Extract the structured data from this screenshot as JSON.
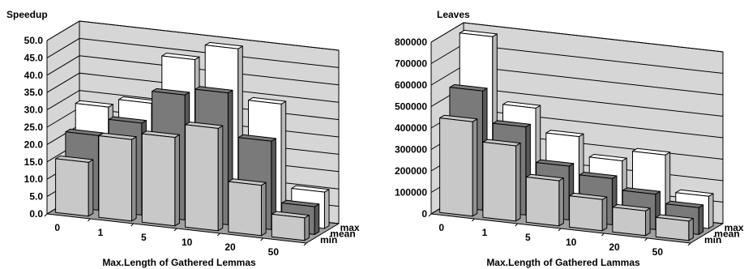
{
  "chart_data": [
    {
      "type": "bar",
      "subtype": "3d-grouped",
      "title": "Speedup",
      "xlabel": "Max.Length of Gathered Lemmas",
      "categories": [
        "0",
        "1",
        "5",
        "10",
        "20",
        "50"
      ],
      "depth_labels": [
        "max",
        "mean",
        "min"
      ],
      "ylim": [
        0,
        50
      ],
      "yticks": [
        "0.0",
        "5.0",
        "10.0",
        "15.0",
        "20.0",
        "25.0",
        "30.0",
        "35.0",
        "40.0",
        "45.0",
        "50.0"
      ],
      "grid": true,
      "series": [
        {
          "name": "min",
          "values": [
            15.5,
            23.5,
            25.5,
            29.5,
            14.5,
            6.5
          ]
        },
        {
          "name": "mean",
          "values": [
            21.5,
            26.5,
            36.0,
            38.0,
            25.5,
            8.0
          ]
        },
        {
          "name": "max",
          "values": [
            28.0,
            30.5,
            44.5,
            49.0,
            34.5,
            10.5
          ]
        }
      ],
      "colors": {
        "min": "#c8c8c8",
        "mean": "#7a7a7a",
        "max": "#ffffff",
        "wall": "#d6d6d6",
        "floor": "#a0a0a0"
      }
    },
    {
      "type": "bar",
      "subtype": "3d-grouped",
      "title": "Leaves",
      "xlabel": "Max.Length of Gathered Lammas",
      "categories": [
        "0",
        "1",
        "5",
        "10",
        "20",
        "50"
      ],
      "depth_labels": [
        "max",
        "mean",
        "min"
      ],
      "ylim": [
        0,
        800000
      ],
      "yticks": [
        "0",
        "100000",
        "200000",
        "300000",
        "400000",
        "500000",
        "600000",
        "700000",
        "800000"
      ],
      "grid": true,
      "series": [
        {
          "name": "min",
          "values": [
            440000,
            350000,
            210000,
            145000,
            115000,
            90000
          ]
        },
        {
          "name": "mean",
          "values": [
            555000,
            410000,
            250000,
            215000,
            165000,
            125000
          ]
        },
        {
          "name": "max",
          "values": [
            780000,
            470000,
            360000,
            270000,
            320000,
            150000
          ]
        }
      ],
      "colors": {
        "min": "#c8c8c8",
        "mean": "#7a7a7a",
        "max": "#ffffff",
        "wall": "#d6d6d6",
        "floor": "#a0a0a0"
      }
    }
  ]
}
